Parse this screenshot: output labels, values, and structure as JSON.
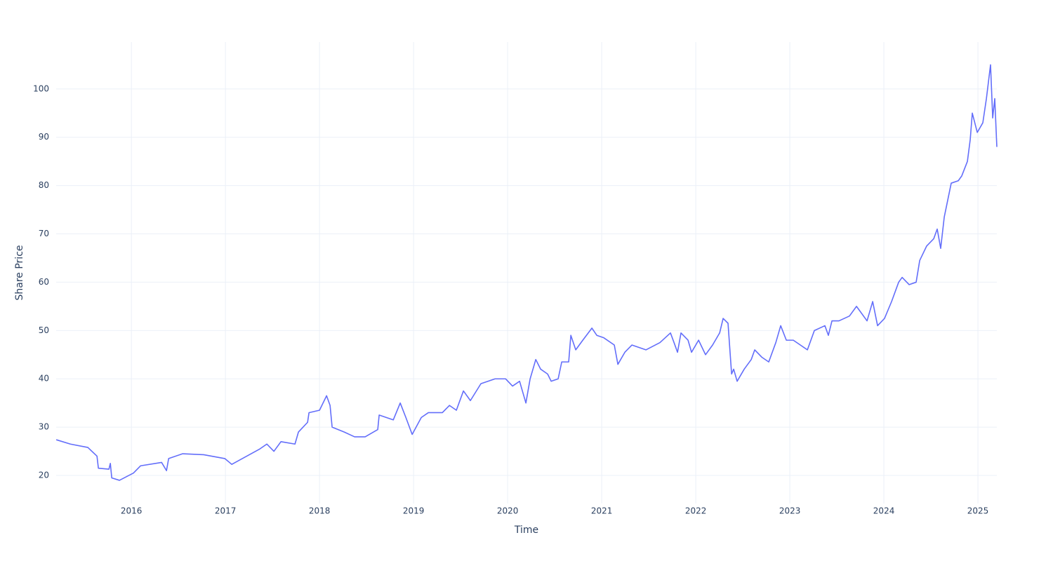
{
  "chart_data": {
    "type": "line",
    "xlabel": "Time",
    "ylabel": "Share Price",
    "xlim": [
      2015.2,
      2025.201
    ],
    "ylim": [
      14.2,
      109.7
    ],
    "xticks": [
      2016,
      2017,
      2018,
      2019,
      2020,
      2021,
      2022,
      2023,
      2024,
      2025
    ],
    "yticks": [
      20,
      30,
      40,
      50,
      60,
      70,
      80,
      90,
      100
    ],
    "grid": true,
    "series": [
      {
        "color": "#636efa",
        "x": [
          2015.201,
          2015.351,
          2015.537,
          2015.634,
          2015.649,
          2015.761,
          2015.776,
          2015.791,
          2015.873,
          2016.022,
          2016.097,
          2016.321,
          2016.373,
          2016.396,
          2016.545,
          2016.769,
          2016.993,
          2017.067,
          2017.179,
          2017.366,
          2017.44,
          2017.515,
          2017.59,
          2017.739,
          2017.776,
          2017.873,
          2017.888,
          2018.0,
          2018.075,
          2018.112,
          2018.134,
          2018.261,
          2018.373,
          2018.485,
          2018.619,
          2018.634,
          2018.784,
          2018.858,
          2018.918,
          2018.985,
          2019.082,
          2019.157,
          2019.306,
          2019.381,
          2019.455,
          2019.53,
          2019.604,
          2019.716,
          2019.866,
          2019.978,
          2020.052,
          2020.127,
          2020.194,
          2020.239,
          2020.299,
          2020.351,
          2020.425,
          2020.463,
          2020.537,
          2020.575,
          2020.649,
          2020.672,
          2020.724,
          2020.799,
          2020.896,
          2020.948,
          2021.022,
          2021.134,
          2021.172,
          2021.246,
          2021.321,
          2021.47,
          2021.619,
          2021.731,
          2021.769,
          2021.806,
          2021.843,
          2021.918,
          2021.955,
          2022.03,
          2022.104,
          2022.179,
          2022.254,
          2022.291,
          2022.343,
          2022.381,
          2022.403,
          2022.44,
          2022.515,
          2022.59,
          2022.627,
          2022.701,
          2022.776,
          2022.851,
          2022.903,
          2022.963,
          2023.037,
          2023.112,
          2023.187,
          2023.261,
          2023.373,
          2023.41,
          2023.448,
          2023.522,
          2023.634,
          2023.709,
          2023.821,
          2023.881,
          2023.933,
          2024.007,
          2024.082,
          2024.157,
          2024.194,
          2024.269,
          2024.343,
          2024.381,
          2024.455,
          2024.53,
          2024.567,
          2024.604,
          2024.642,
          2024.679,
          2024.716,
          2024.791,
          2024.828,
          2024.888,
          2024.918,
          2024.94,
          2024.993,
          2025.052,
          2025.09,
          2025.134,
          2025.157,
          2025.179,
          2025.201
        ],
        "values": [
          27.4,
          26.5,
          25.8,
          24,
          21.5,
          21.3,
          22.5,
          19.5,
          19,
          20.5,
          22,
          22.7,
          21,
          23.5,
          24.5,
          24.3,
          23.5,
          22.3,
          23.5,
          25.5,
          26.5,
          25,
          27,
          26.5,
          29,
          31,
          33,
          33.5,
          36.5,
          34.5,
          30,
          29,
          28,
          28,
          29.5,
          32.5,
          31.5,
          35,
          32,
          28.5,
          32,
          33,
          33,
          34.5,
          33.5,
          37.5,
          35.5,
          39,
          40,
          40,
          38.5,
          39.5,
          35,
          40,
          44,
          42,
          41,
          39.5,
          40,
          43.5,
          43.5,
          49,
          46,
          48,
          50.5,
          49,
          48.5,
          47,
          43,
          45.5,
          47,
          46,
          47.5,
          49.5,
          47.5,
          45.5,
          49.5,
          48,
          45.5,
          48,
          45,
          47,
          49.5,
          52.5,
          51.5,
          41,
          42,
          39.5,
          42,
          44,
          46,
          44.5,
          43.5,
          47.5,
          51,
          48,
          48,
          47,
          46,
          50,
          51,
          49,
          52,
          52,
          53,
          55,
          52,
          56,
          51,
          52.5,
          56,
          60,
          61,
          59.5,
          60,
          64.5,
          67.5,
          69,
          71,
          67,
          73.5,
          77,
          80.5,
          81,
          82,
          85,
          89.5,
          95,
          91,
          93,
          98,
          105,
          94,
          98,
          88
        ]
      }
    ]
  }
}
